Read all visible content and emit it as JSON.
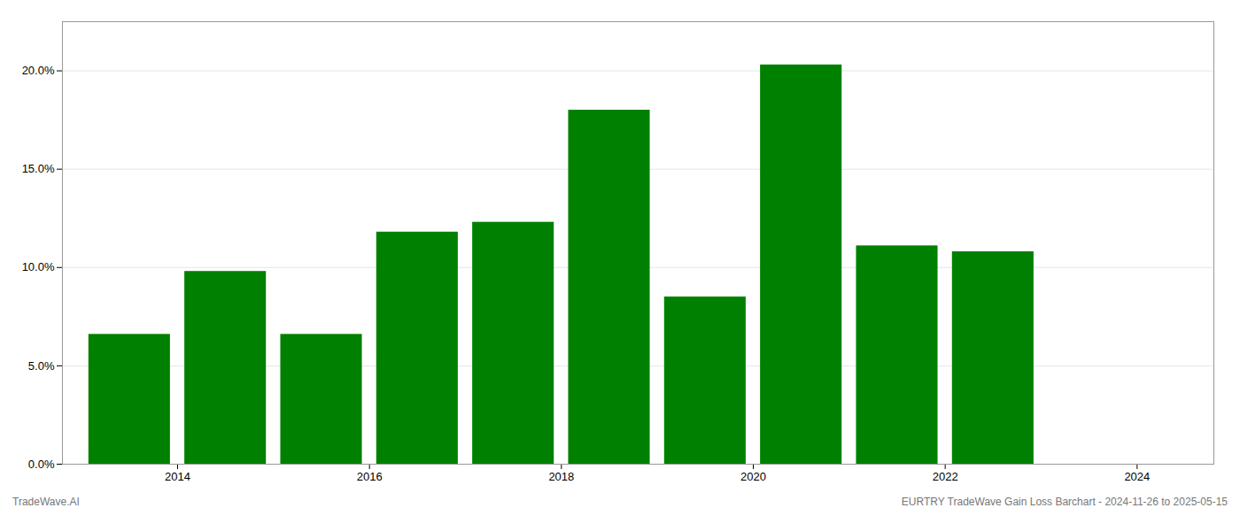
{
  "chart_data": {
    "type": "bar",
    "x": [
      2013.5,
      2014.5,
      2015.5,
      2016.5,
      2017.5,
      2018.5,
      2019.5,
      2020.5,
      2021.5,
      2022.5
    ],
    "values": [
      0.066,
      0.098,
      0.066,
      0.118,
      0.123,
      0.18,
      0.085,
      0.203,
      0.111,
      0.108
    ],
    "color": "#008000",
    "xlim": [
      2012.8,
      2024.8
    ],
    "xticks": [
      2014,
      2016,
      2018,
      2020,
      2022,
      2024
    ],
    "ylim": [
      0,
      0.225
    ],
    "yticks": [
      {
        "value": 0.0,
        "label": "0.0%"
      },
      {
        "value": 0.05,
        "label": "5.0%"
      },
      {
        "value": 0.1,
        "label": "10.0%"
      },
      {
        "value": 0.15,
        "label": "15.0%"
      },
      {
        "value": 0.2,
        "label": "20.0%"
      }
    ],
    "grid": true,
    "annotations": [
      "TradeWave.AI",
      "EURTRY TradeWave Gain Loss Barchart - 2024-11-26 to 2025-05-15"
    ]
  }
}
